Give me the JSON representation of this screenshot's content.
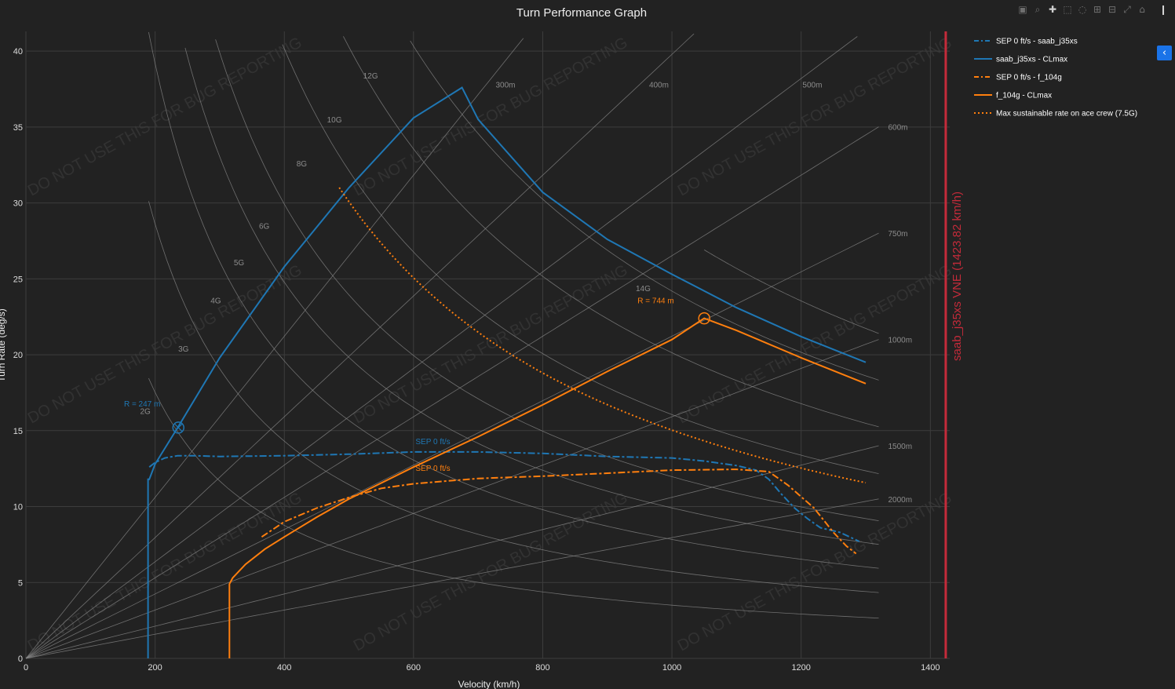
{
  "modebar": {
    "icons": [
      "camera-icon",
      "zoom-icon",
      "pan-icon",
      "box-select-icon",
      "lasso-icon",
      "zoom-in-icon",
      "zoom-out-icon",
      "autoscale-icon",
      "reset-axes-icon",
      "plotly-logo-icon"
    ]
  },
  "collapse_button": {
    "icon": "chevron-left-icon"
  },
  "watermark": {
    "text": "DO NOT USE THIS FOR BUG REPORTING"
  },
  "chart_data": {
    "type": "line",
    "title": "Turn Performance Graph",
    "xlabel": "Velocity (km/h)",
    "ylabel": "Turn Rate (deg/s)",
    "xlim": [
      0,
      1430
    ],
    "ylim": [
      0,
      41.3
    ],
    "x_ticks": [
      0,
      200,
      400,
      600,
      800,
      1000,
      1200,
      1400
    ],
    "y_ticks": [
      0,
      5,
      10,
      15,
      20,
      25,
      30,
      35,
      40
    ],
    "grid": true,
    "legend_position": "right",
    "g_lines": [
      {
        "label": "2G",
        "g": 2,
        "label_x": 193,
        "label_y": 16.1
      },
      {
        "label": "3G",
        "g": 3,
        "label_x": 252,
        "label_y": 20.2
      },
      {
        "label": "4G",
        "g": 4,
        "label_x": 302,
        "label_y": 23.4
      },
      {
        "label": "5G",
        "g": 5,
        "label_x": 338,
        "label_y": 25.9
      },
      {
        "label": "6G",
        "g": 6,
        "label_x": 377,
        "label_y": 28.3
      },
      {
        "label": "8G",
        "g": 8,
        "label_x": 435,
        "label_y": 32.4
      },
      {
        "label": "10G",
        "g": 10,
        "label_x": 489,
        "label_y": 35.3
      },
      {
        "label": "12G",
        "g": 12,
        "label_x": 545,
        "label_y": 38.2
      },
      {
        "label": "14G",
        "g": 14,
        "label_x": 967,
        "label_y": 24.2
      }
    ],
    "radius_lines": [
      {
        "label": "300m",
        "r": 300
      },
      {
        "label": "400m",
        "r": 400
      },
      {
        "label": "500m",
        "r": 500
      },
      {
        "label": "600m",
        "r": 600
      },
      {
        "label": "750m",
        "r": 750
      },
      {
        "label": "1000m",
        "r": 1000
      },
      {
        "label": "1500m",
        "r": 1500
      },
      {
        "label": "2000m",
        "r": 2000
      }
    ],
    "series": [
      {
        "name": "SEP 0 ft/s - saab_j35xs",
        "color": "#1f77b4",
        "dash": "dashdot",
        "x": [
          191,
          200,
          215,
          235,
          260,
          300,
          400,
          500,
          600,
          700,
          800,
          900,
          1000,
          1050,
          1100,
          1130,
          1150,
          1170,
          1190,
          1210,
          1230,
          1260,
          1290
        ],
        "y": [
          12.6,
          12.9,
          13.2,
          13.35,
          13.35,
          13.3,
          13.35,
          13.45,
          13.6,
          13.6,
          13.5,
          13.3,
          13.2,
          13.0,
          12.7,
          12.4,
          11.8,
          10.8,
          9.9,
          9.2,
          8.6,
          8.3,
          7.7
        ]
      },
      {
        "name": "saab_j35xs - CLmax",
        "color": "#1f77b4",
        "dash": "solid",
        "x": [
          189,
          189,
          189,
          191,
          200,
          235,
          300,
          400,
          500,
          600,
          675,
          700,
          800,
          900,
          1000,
          1100,
          1200,
          1300
        ],
        "y": [
          0,
          6,
          11.8,
          11.8,
          12.8,
          15.2,
          19.8,
          25.8,
          31.0,
          35.6,
          37.6,
          35.5,
          30.7,
          27.6,
          25.3,
          23.1,
          21.2,
          19.5
        ]
      },
      {
        "name": "SEP 0 ft/s - f_104g",
        "color": "#ff7f0e",
        "dash": "dashdot",
        "x": [
          365,
          400,
          450,
          500,
          550,
          600,
          700,
          800,
          900,
          1000,
          1100,
          1150,
          1180,
          1220,
          1250,
          1270,
          1285
        ],
        "y": [
          8.0,
          9.0,
          9.9,
          10.6,
          11.2,
          11.5,
          11.85,
          12.0,
          12.2,
          12.4,
          12.45,
          12.3,
          11.4,
          9.9,
          8.3,
          7.4,
          6.9
        ]
      },
      {
        "name": "f_104g - CLmax",
        "color": "#ff7f0e",
        "dash": "solid",
        "x": [
          315,
          315,
          315,
          320,
          340,
          370,
          400,
          450,
          500,
          600,
          700,
          800,
          900,
          1000,
          1050,
          1100,
          1200,
          1300
        ],
        "y": [
          0,
          3,
          4.9,
          5.3,
          6.2,
          7.2,
          8.0,
          9.3,
          10.5,
          12.6,
          14.6,
          16.7,
          18.9,
          21.0,
          22.4,
          21.6,
          19.8,
          18.1
        ]
      },
      {
        "name": "Max sustainable rate on ace crew (7.5G)",
        "color": "#ff7f0e",
        "dash": "dot",
        "g": 7.5,
        "x_range": [
          485,
          1300
        ]
      }
    ],
    "annotations": [
      {
        "text": "R = 247 m",
        "color": "#1f77b4",
        "x": 236,
        "y": 15.2,
        "marker": "circle-x",
        "label_x": 180,
        "label_y": 16.6
      },
      {
        "text": "R = 744 m",
        "color": "#ff7f0e",
        "x": 1050,
        "y": 22.4,
        "marker": "circle",
        "label_x": 975,
        "label_y": 23.4
      },
      {
        "text": "SEP 0 ft/s",
        "color": "#1f77b4",
        "label_x": 630,
        "label_y": 14.1
      },
      {
        "text": "SEP 0 ft/s",
        "color": "#ff7f0e",
        "label_x": 630,
        "label_y": 12.35
      }
    ],
    "vne_line": {
      "x": 1423.82,
      "label": "saab_j35xs VNE (1423.82 km/h)",
      "color": "#c42b3a"
    },
    "iso_line_x_range": [
      190,
      1320
    ]
  }
}
